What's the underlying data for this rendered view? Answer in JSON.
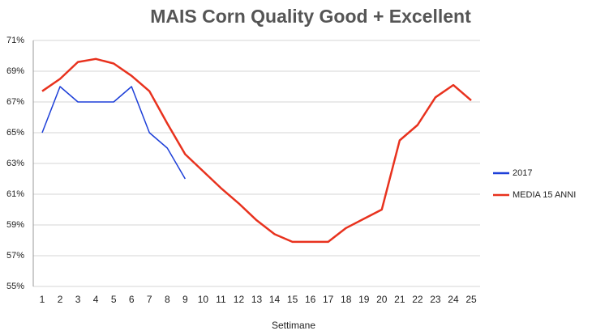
{
  "chart_data": {
    "type": "line",
    "title": "MAIS Corn Quality Good + Excellent",
    "x_label": "Settimane",
    "categories": [
      1,
      2,
      3,
      4,
      5,
      6,
      7,
      8,
      9,
      10,
      11,
      12,
      13,
      14,
      15,
      16,
      17,
      18,
      19,
      20,
      21,
      22,
      23,
      24,
      25
    ],
    "series": [
      {
        "name": "2017",
        "color": "#1d3fd8",
        "values": [
          65,
          68,
          67,
          67,
          67,
          68,
          65,
          64,
          62,
          null,
          null,
          null,
          null,
          null,
          null,
          null,
          null,
          null,
          null,
          null,
          null,
          null,
          null,
          null,
          null
        ]
      },
      {
        "name": "MEDIA 15 ANNI",
        "color": "#e8321e",
        "values": [
          67.7,
          68.5,
          69.6,
          69.8,
          69.5,
          68.7,
          67.7,
          65.6,
          63.6,
          62.5,
          61.4,
          60.4,
          59.3,
          58.4,
          57.9,
          57.9,
          57.9,
          58.8,
          59.4,
          60.0,
          64.5,
          65.5,
          67.3,
          68.1,
          67.1
        ]
      }
    ],
    "ylim": [
      55,
      71
    ],
    "yticks": [
      {
        "value": 55,
        "label": "55%"
      },
      {
        "value": 57,
        "label": "57%"
      },
      {
        "value": 59,
        "label": "59%"
      },
      {
        "value": 61,
        "label": "61%"
      },
      {
        "value": 63,
        "label": "63%"
      },
      {
        "value": 65,
        "label": "65%"
      },
      {
        "value": 67,
        "label": "67%"
      },
      {
        "value": 69,
        "label": "69%"
      },
      {
        "value": 71,
        "label": "71%"
      }
    ],
    "grid": true,
    "legend": "right"
  }
}
